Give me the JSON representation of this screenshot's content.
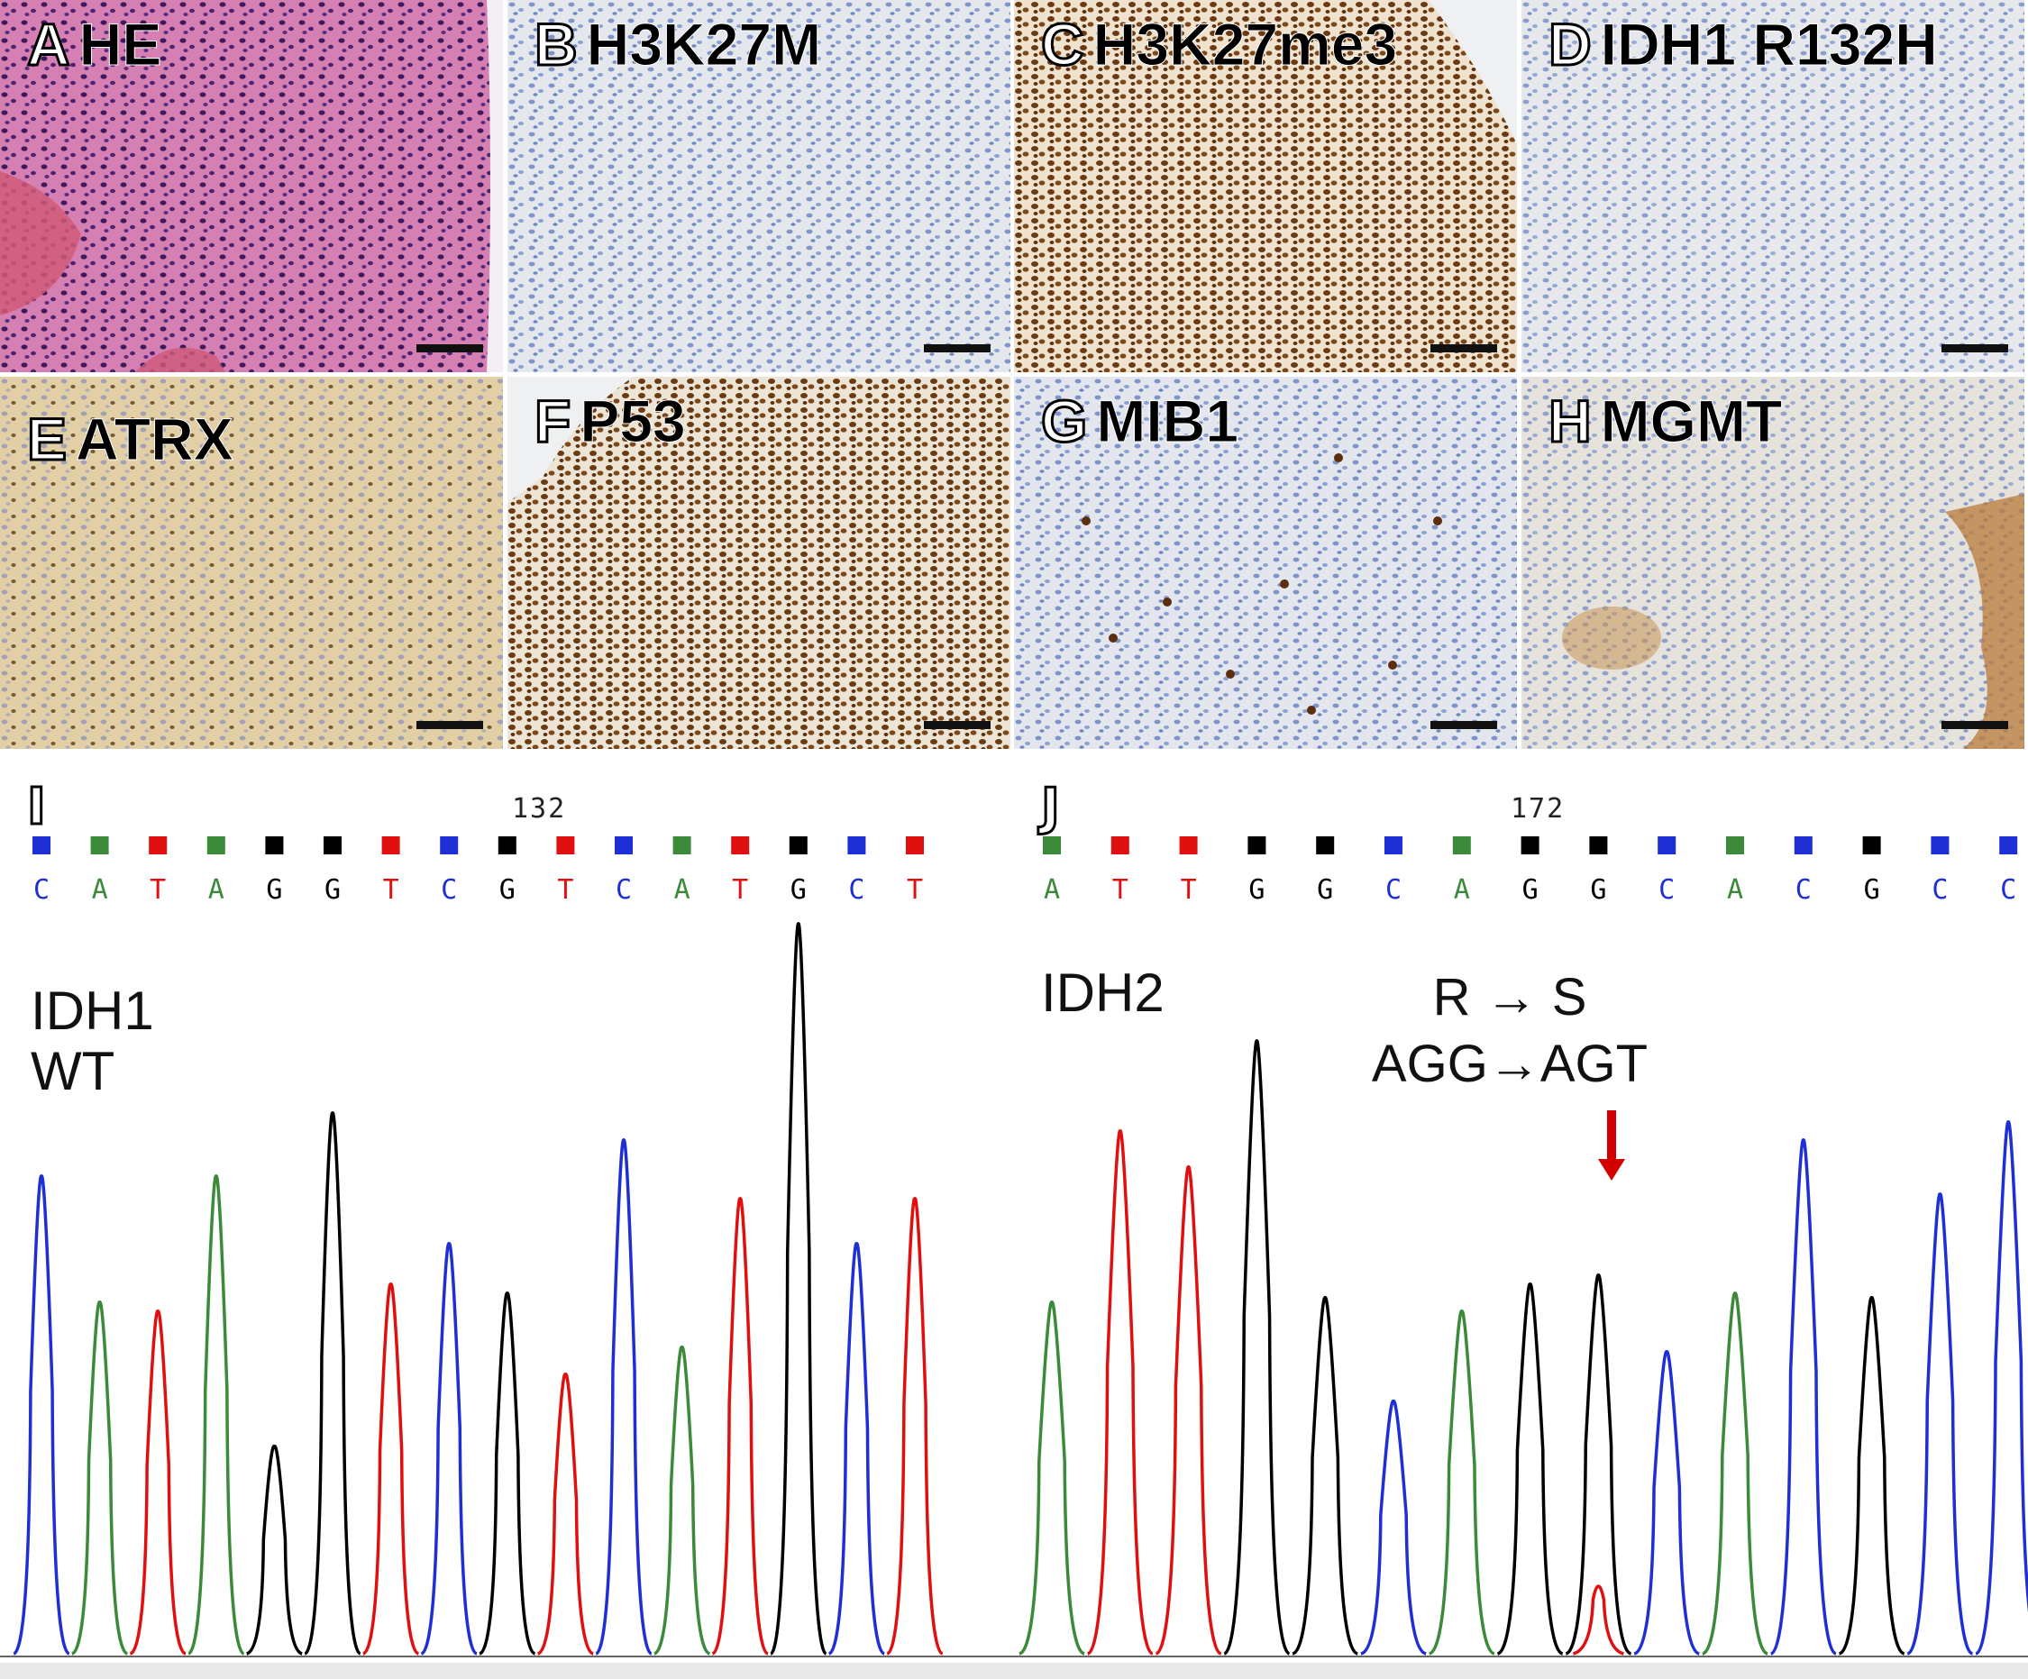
{
  "panels": [
    {
      "letter": "A",
      "name": "HE"
    },
    {
      "letter": "B",
      "name": "H3K27M"
    },
    {
      "letter": "C",
      "name": "H3K27me3"
    },
    {
      "letter": "D",
      "name": "IDH1 R132H"
    },
    {
      "letter": "E",
      "name": "ATRX"
    },
    {
      "letter": "F",
      "name": "P53"
    },
    {
      "letter": "G",
      "name": "MIB1"
    },
    {
      "letter": "H",
      "name": "MGMT"
    }
  ],
  "chromatograms": [
    {
      "letter": "I",
      "position": "132",
      "bases": [
        "C",
        "A",
        "T",
        "A",
        "G",
        "G",
        "T",
        "C",
        "G",
        "T",
        "C",
        "A",
        "T",
        "G",
        "C",
        "T"
      ],
      "gene_line1": "IDH1",
      "gene_line2": "WT"
    },
    {
      "letter": "J",
      "position": "172",
      "bases": [
        "A",
        "T",
        "T",
        "G",
        "G",
        "C",
        "A",
        "G",
        "G",
        "C",
        "A",
        "C",
        "G",
        "C",
        "C"
      ],
      "gene_line1": "IDH2",
      "mutation_aa": "R   →   S",
      "mutation_codon": "AGG→AGT"
    }
  ],
  "colors": {
    "A": "#3a8a3a",
    "C": "#1f2fd6",
    "G": "#000000",
    "T": "#e01010",
    "arrow": "#d40000"
  }
}
